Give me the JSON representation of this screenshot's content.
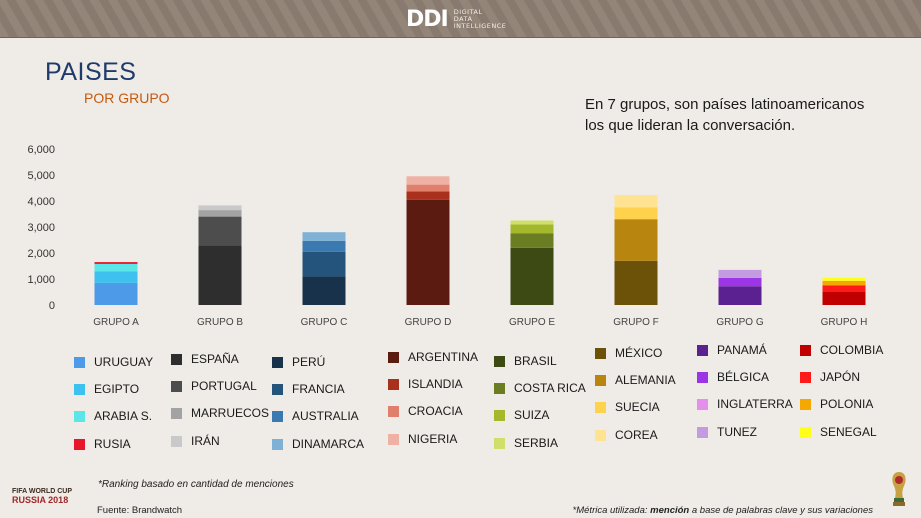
{
  "header": {
    "logo_mark": "DDI",
    "logo_line1": "DIGITAL",
    "logo_line2": "DATA",
    "logo_line3": "INTELLIGENCE"
  },
  "page": {
    "title": "PAISES",
    "subtitle": "POR GRUPO",
    "headline_line1": "En 7 grupos, son países latinoamericanos",
    "headline_line2": "los que lideran la conversación."
  },
  "chart_data": {
    "type": "bar",
    "stacked": true,
    "ylim": [
      0,
      6000
    ],
    "yticks": [
      "0",
      "1,000",
      "2,000",
      "3,000",
      "4,000",
      "5,000",
      "6,000"
    ],
    "grid": false,
    "legend_position": "bottom",
    "categories": [
      "GRUPO A",
      "GRUPO B",
      "GRUPO C",
      "GRUPO D",
      "GRUPO E",
      "GRUPO F",
      "GRUPO G",
      "GRUPO H"
    ],
    "groups": [
      {
        "category": "GRUPO A",
        "segments": [
          {
            "name": "URUGUAY",
            "value": 850,
            "color": "#4d9ae8"
          },
          {
            "name": "EGIPTO",
            "value": 450,
            "color": "#3ec1ee"
          },
          {
            "name": "ARABIA S.",
            "value": 280,
            "color": "#5ce6e8"
          },
          {
            "name": "RUSIA",
            "value": 70,
            "color": "#e8162a"
          }
        ]
      },
      {
        "category": "GRUPO B",
        "segments": [
          {
            "name": "ESPAÑA",
            "value": 2300,
            "color": "#2e2e2e"
          },
          {
            "name": "PORTUGAL",
            "value": 1100,
            "color": "#4d4d4d"
          },
          {
            "name": "MARRUECOS",
            "value": 250,
            "color": "#a3a3a3"
          },
          {
            "name": "IRÁN",
            "value": 180,
            "color": "#c9c9c9"
          }
        ]
      },
      {
        "category": "GRUPO C",
        "segments": [
          {
            "name": "PERÚ",
            "value": 1100,
            "color": "#17324a"
          },
          {
            "name": "FRANCIA",
            "value": 950,
            "color": "#24547c"
          },
          {
            "name": "AUSTRALIA",
            "value": 420,
            "color": "#3a7ab1"
          },
          {
            "name": "DINAMARCA",
            "value": 330,
            "color": "#7fb0d6"
          }
        ]
      },
      {
        "category": "GRUPO D",
        "segments": [
          {
            "name": "ARGENTINA",
            "value": 4050,
            "color": "#5c1b10"
          },
          {
            "name": "ISLANDIA",
            "value": 320,
            "color": "#a8301c"
          },
          {
            "name": "CROACIA",
            "value": 260,
            "color": "#e0806c"
          },
          {
            "name": "NIGERIA",
            "value": 320,
            "color": "#efb1a4"
          }
        ]
      },
      {
        "category": "GRUPO E",
        "segments": [
          {
            "name": "BRASIL",
            "value": 2200,
            "color": "#3e4a13"
          },
          {
            "name": "COSTA RICA",
            "value": 550,
            "color": "#6a7d22"
          },
          {
            "name": "SUIZA",
            "value": 350,
            "color": "#a3b82a"
          },
          {
            "name": "SERBIA",
            "value": 150,
            "color": "#cfe06a"
          }
        ]
      },
      {
        "category": "GRUPO F",
        "segments": [
          {
            "name": "MÉXICO",
            "value": 1700,
            "color": "#6b5208"
          },
          {
            "name": "ALEMANIA",
            "value": 1600,
            "color": "#b8860f"
          },
          {
            "name": "SUECIA",
            "value": 450,
            "color": "#ffd24d"
          },
          {
            "name": "COREA",
            "value": 480,
            "color": "#ffe391"
          }
        ]
      },
      {
        "category": "GRUPO G",
        "segments": [
          {
            "name": "PANAMÁ",
            "value": 720,
            "color": "#5b2190"
          },
          {
            "name": "BÉLGICA",
            "value": 330,
            "color": "#9b35e6"
          },
          {
            "name": "INGLATERRA",
            "value": 20,
            "color": "#e48fec"
          },
          {
            "name": "TUNEZ",
            "value": 280,
            "color": "#c49be0"
          }
        ]
      },
      {
        "category": "GRUPO H",
        "segments": [
          {
            "name": "COLOMBIA",
            "value": 500,
            "color": "#c00000"
          },
          {
            "name": "JAPÓN",
            "value": 250,
            "color": "#ff1a1a"
          },
          {
            "name": "POLONIA",
            "value": 180,
            "color": "#f5a800"
          },
          {
            "name": "SENEGAL",
            "value": 120,
            "color": "#ffff1a"
          }
        ]
      }
    ]
  },
  "footer": {
    "note": "*Ranking  basado en cantidad de menciones",
    "source": "Fuente: Brandwatch",
    "metric_prefix": "*Métrica utilizada: ",
    "metric_bold": "mención",
    "metric_suffix": " a base de palabras clave y sus variaciones",
    "badge_line1": "FIFA WORLD CUP",
    "badge_line2": "RUSSIA 2018"
  }
}
